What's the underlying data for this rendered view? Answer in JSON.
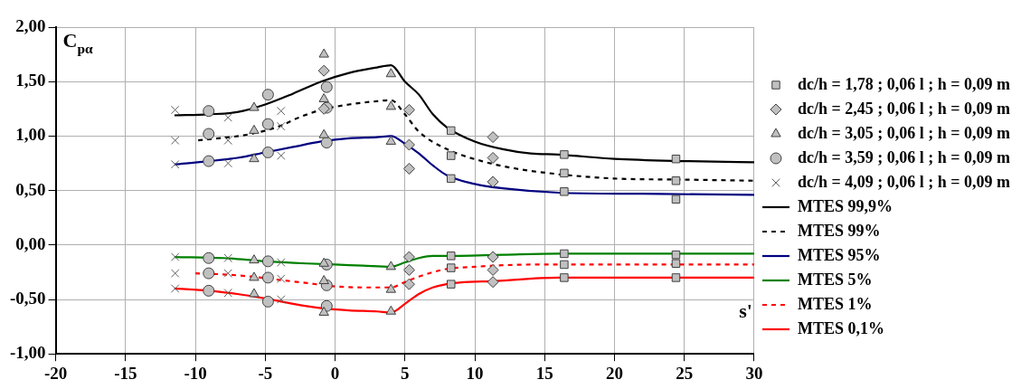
{
  "chart_data": {
    "type": "scatter",
    "xlabel": "s'",
    "ylabel": "C$_{pα}$",
    "xlim": [
      -20,
      30
    ],
    "xticks": [
      -20,
      -15,
      -10,
      -5,
      0,
      5,
      10,
      15,
      20,
      25,
      30
    ],
    "ylim": [
      -1,
      2
    ],
    "yticks": [
      {
        "value": -1,
        "label": "-1,00"
      },
      {
        "value": -0.5,
        "label": "-0,50"
      },
      {
        "value": 0,
        "label": "0,00"
      },
      {
        "value": 0.5,
        "label": "0,50"
      },
      {
        "value": 1,
        "label": "1,00"
      },
      {
        "value": 1.5,
        "label": "1,50"
      },
      {
        "value": 2,
        "label": "2,00"
      }
    ],
    "grid": true,
    "legend": "right",
    "series": [
      {
        "name": "dc/h = 1,78 ; 0,06 l ; h = 0,09 m",
        "marker": "square",
        "color": "#c0c0c0",
        "x": [
          8.3,
          8.3,
          8.3,
          8.3,
          8.3,
          8.3,
          16.4,
          16.4,
          16.4,
          16.4,
          16.4,
          16.4,
          24.4,
          24.4,
          24.4,
          24.4,
          24.4,
          24.4
        ],
        "values": [
          1.05,
          0.82,
          0.61,
          -0.1,
          -0.21,
          -0.36,
          0.83,
          0.66,
          0.49,
          -0.08,
          -0.18,
          -0.3,
          0.79,
          0.59,
          0.42,
          -0.09,
          -0.17,
          -0.3
        ]
      },
      {
        "name": "dc/h = 2,45 ; 0,06 l ; h = 0,09 m",
        "marker": "diamond",
        "color": "#c0c0c0",
        "x": [
          -0.8,
          -0.8,
          5.3,
          5.3,
          5.3,
          5.3,
          5.3,
          5.3,
          11.3,
          11.3,
          11.3,
          11.3,
          11.3,
          11.3
        ],
        "values": [
          1.6,
          1.25,
          1.24,
          0.92,
          0.7,
          -0.11,
          -0.23,
          -0.36,
          0.99,
          0.8,
          0.58,
          -0.11,
          -0.23,
          -0.34
        ]
      },
      {
        "name": "dc/h = 3,05 ; 0,06 l ; h = 0,09 m",
        "marker": "triangle",
        "color": "#c0c0c0",
        "x": [
          -5.8,
          -5.8,
          -5.8,
          -5.8,
          -5.8,
          -5.8,
          -0.8,
          -0.8,
          -0.8,
          -0.8,
          -0.8,
          -0.8,
          4,
          4,
          4,
          4,
          4,
          4
        ],
        "values": [
          1.26,
          1.05,
          0.79,
          -0.14,
          -0.3,
          -0.45,
          1.75,
          1.34,
          1.01,
          -0.17,
          -0.33,
          -0.62,
          1.57,
          1.27,
          0.95,
          -0.2,
          -0.41,
          -0.61
        ]
      },
      {
        "name": "dc/h = 3,59 ; 0,06 l ; h = 0,09 m",
        "marker": "circle",
        "color": "#c0c0c0",
        "x": [
          -9.05,
          -9.05,
          -9.05,
          -9.05,
          -9.05,
          -9.05,
          -4.8,
          -4.8,
          -4.8,
          -4.8,
          -4.8,
          -4.8,
          -0.6,
          -0.6,
          -0.6,
          -0.6,
          -0.6,
          -0.6
        ],
        "values": [
          1.23,
          1.02,
          0.77,
          -0.12,
          -0.26,
          -0.42,
          1.38,
          1.11,
          0.85,
          -0.15,
          -0.3,
          -0.52,
          1.45,
          1.26,
          0.94,
          -0.18,
          -0.37,
          -0.56
        ]
      },
      {
        "name": "dc/h = 4,09 ; 0,06 l ; h = 0,09 m",
        "marker": "cross",
        "color": "#606060",
        "x": [
          -11.45,
          -11.45,
          -11.45,
          -11.45,
          -11.45,
          -11.45,
          -7.66,
          -7.66,
          -7.66,
          -7.66,
          -7.66,
          -7.66,
          -3.87,
          -3.87,
          -3.87,
          -3.87,
          -3.87,
          -3.87
        ],
        "values": [
          1.24,
          0.96,
          0.74,
          -0.11,
          -0.26,
          -0.4,
          1.17,
          0.96,
          0.75,
          -0.12,
          -0.26,
          -0.44,
          1.23,
          1.09,
          0.82,
          -0.16,
          -0.31,
          -0.5
        ]
      },
      {
        "name": "MTES 99,9%",
        "type": "line",
        "line_style": "solid",
        "color": "#000000",
        "x": [
          -11.5,
          -9,
          -7,
          -5,
          -3,
          -1,
          1,
          3,
          4,
          5,
          6,
          7,
          8,
          10,
          12,
          14,
          16,
          20,
          25,
          30
        ],
        "values": [
          1.19,
          1.2,
          1.22,
          1.29,
          1.39,
          1.5,
          1.58,
          1.63,
          1.65,
          1.5,
          1.38,
          1.2,
          1.08,
          0.95,
          0.88,
          0.84,
          0.83,
          0.79,
          0.77,
          0.76
        ]
      },
      {
        "name": "MTES 99%",
        "type": "line",
        "line_style": "dashed",
        "color": "#000000",
        "x": [
          -9.8,
          -6,
          -4,
          -2.6,
          -1,
          1,
          3,
          4,
          5,
          6,
          8,
          10.5,
          13,
          16,
          20,
          25,
          30
        ],
        "values": [
          0.96,
          1.02,
          1.09,
          1.17,
          1.24,
          1.29,
          1.32,
          1.33,
          1.2,
          1.04,
          0.88,
          0.77,
          0.7,
          0.65,
          0.61,
          0.6,
          0.59
        ]
      },
      {
        "name": "MTES 95%",
        "type": "line",
        "line_style": "solid",
        "color": "#000080",
        "x": [
          -11.5,
          -9,
          -7,
          -5,
          -3,
          -1,
          1,
          3,
          4,
          5,
          6,
          7,
          8,
          10,
          12,
          16,
          22,
          30
        ],
        "values": [
          0.74,
          0.77,
          0.8,
          0.85,
          0.9,
          0.95,
          0.98,
          0.99,
          1,
          0.93,
          0.84,
          0.73,
          0.64,
          0.56,
          0.52,
          0.48,
          0.47,
          0.46
        ]
      },
      {
        "name": "MTES 5%",
        "type": "line",
        "line_style": "solid",
        "color": "#008000",
        "x": [
          -11.5,
          -8,
          -5,
          -2,
          0,
          2,
          4,
          5,
          6,
          7,
          8.5,
          12,
          16,
          22,
          30
        ],
        "values": [
          -0.11,
          -0.12,
          -0.15,
          -0.17,
          -0.18,
          -0.19,
          -0.2,
          -0.16,
          -0.12,
          -0.1,
          -0.1,
          -0.09,
          -0.08,
          -0.08,
          -0.08
        ]
      },
      {
        "name": "MTES 1%",
        "type": "line",
        "line_style": "dashed",
        "color": "#ff0000",
        "x": [
          -10,
          -8,
          -6,
          -4,
          -2,
          0,
          2,
          4,
          5,
          6,
          7,
          8,
          10,
          14,
          20,
          30
        ],
        "values": [
          -0.26,
          -0.27,
          -0.29,
          -0.32,
          -0.35,
          -0.38,
          -0.39,
          -0.39,
          -0.34,
          -0.29,
          -0.25,
          -0.22,
          -0.2,
          -0.18,
          -0.18,
          -0.18
        ]
      },
      {
        "name": "MTES 0,1%",
        "type": "line",
        "line_style": "solid",
        "color": "#ff0000",
        "x": [
          -11.5,
          -9,
          -7,
          -5,
          -3,
          -1,
          1,
          3,
          4,
          5,
          6,
          7,
          8.5,
          11.5,
          16,
          22,
          30
        ],
        "values": [
          -0.4,
          -0.42,
          -0.45,
          -0.49,
          -0.54,
          -0.58,
          -0.6,
          -0.61,
          -0.62,
          -0.54,
          -0.45,
          -0.39,
          -0.35,
          -0.33,
          -0.3,
          -0.3,
          -0.3
        ]
      }
    ]
  }
}
